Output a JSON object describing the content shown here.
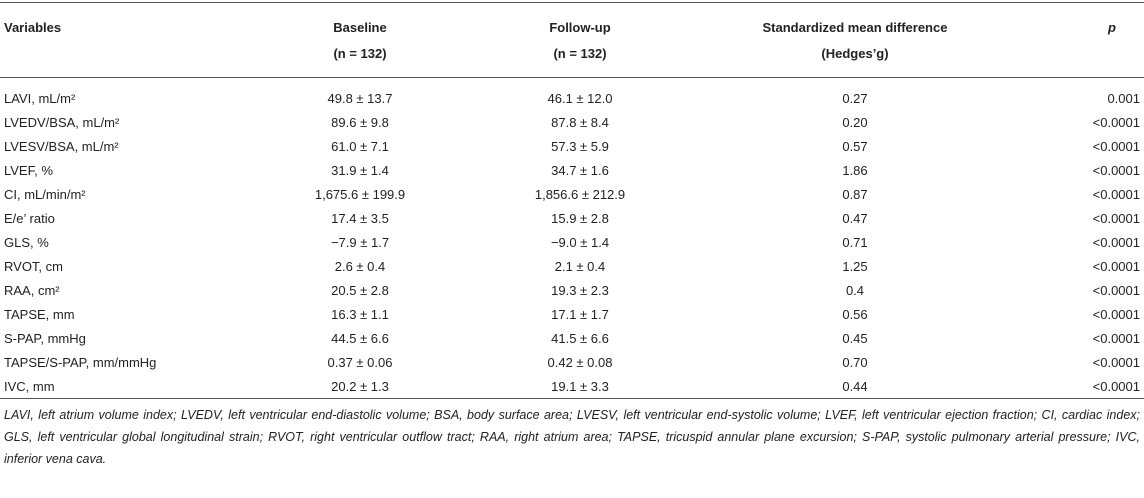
{
  "table": {
    "header": [
      [
        "Variables"
      ],
      [
        "Baseline",
        "(n = 132)"
      ],
      [
        "Follow-up",
        "(n = 132)"
      ],
      [
        "Standardized mean difference",
        "(Hedges’g)"
      ],
      [
        "p"
      ]
    ],
    "rows": [
      [
        "LAVI, mL/m²",
        "49.8 ± 13.7",
        "46.1 ± 12.0",
        "0.27",
        "0.001"
      ],
      [
        "LVEDV/BSA, mL/m²",
        "89.6 ± 9.8",
        "87.8 ± 8.4",
        "0.20",
        "<0.0001"
      ],
      [
        "LVESV/BSA, mL/m²",
        "61.0 ± 7.1",
        "57.3 ± 5.9",
        "0.57",
        "<0.0001"
      ],
      [
        "LVEF, %",
        "31.9 ± 1.4",
        "34.7 ± 1.6",
        "1.86",
        "<0.0001"
      ],
      [
        "CI, mL/min/m²",
        "1,675.6 ± 199.9",
        "1,856.6 ± 212.9",
        "0.87",
        "<0.0001"
      ],
      [
        "E/e’ ratio",
        "17.4 ± 3.5",
        "15.9 ± 2.8",
        "0.47",
        "<0.0001"
      ],
      [
        "GLS, %",
        "−7.9 ± 1.7",
        "−9.0 ± 1.4",
        "0.71",
        "<0.0001"
      ],
      [
        "RVOT, cm",
        "2.6 ± 0.4",
        "2.1 ± 0.4",
        "1.25",
        "<0.0001"
      ],
      [
        "RAA, cm²",
        "20.5 ± 2.8",
        "19.3 ± 2.3",
        "0.4",
        "<0.0001"
      ],
      [
        "TAPSE, mm",
        "16.3 ± 1.1",
        "17.1 ± 1.7",
        "0.56",
        "<0.0001"
      ],
      [
        "S-PAP, mmHg",
        "44.5 ± 6.6",
        "41.5 ± 6.6",
        "0.45",
        "<0.0001"
      ],
      [
        "TAPSE/S-PAP, mm/mmHg",
        "0.37 ± 0.06",
        "0.42 ± 0.08",
        "0.70",
        "<0.0001"
      ],
      [
        "IVC, mm",
        "20.2 ± 1.3",
        "19.1 ± 3.3",
        "0.44",
        "<0.0001"
      ]
    ]
  },
  "footnote": "LAVI, left atrium volume index; LVEDV, left ventricular end-diastolic volume; BSA, body surface area; LVESV, left ventricular end-systolic volume; LVEF, left ventricular ejection fraction; CI, cardiac index; GLS, left ventricular global longitudinal strain; RVOT, right ventricular outflow tract; RAA, right atrium area; TAPSE, tricuspid annular plane excursion; S-PAP, systolic pulmonary arterial pressure; IVC, inferior vena cava."
}
